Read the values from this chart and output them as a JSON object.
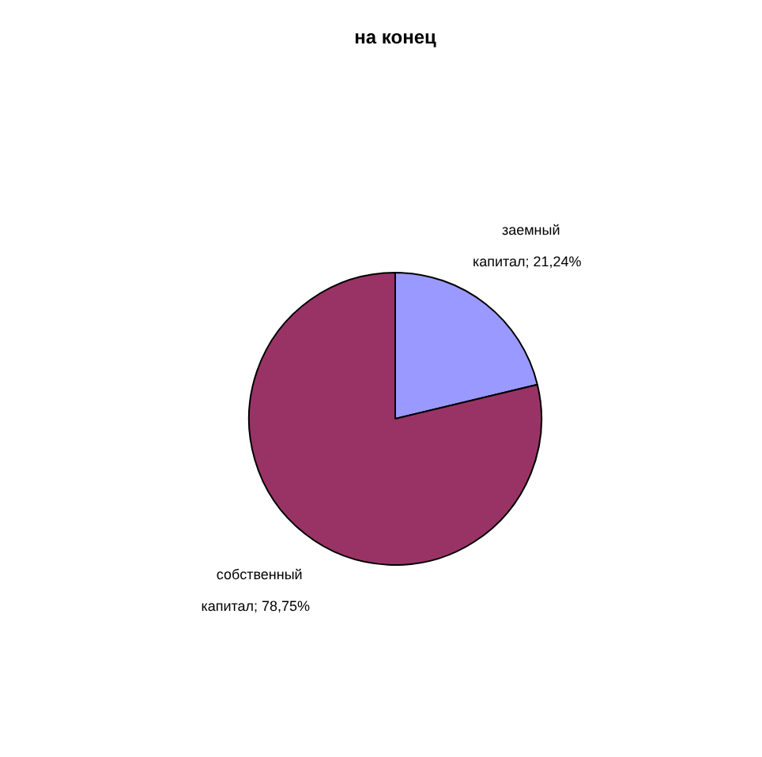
{
  "chart_data": {
    "type": "pie",
    "title": "на конец",
    "categories": [
      "заемный капитал",
      "собственный капитал"
    ],
    "values": [
      21.24,
      78.75
    ],
    "colors": [
      "#9999ff",
      "#993366"
    ],
    "value_labels": [
      "; 21,24%",
      "; 78,75%"
    ],
    "legend": false
  }
}
